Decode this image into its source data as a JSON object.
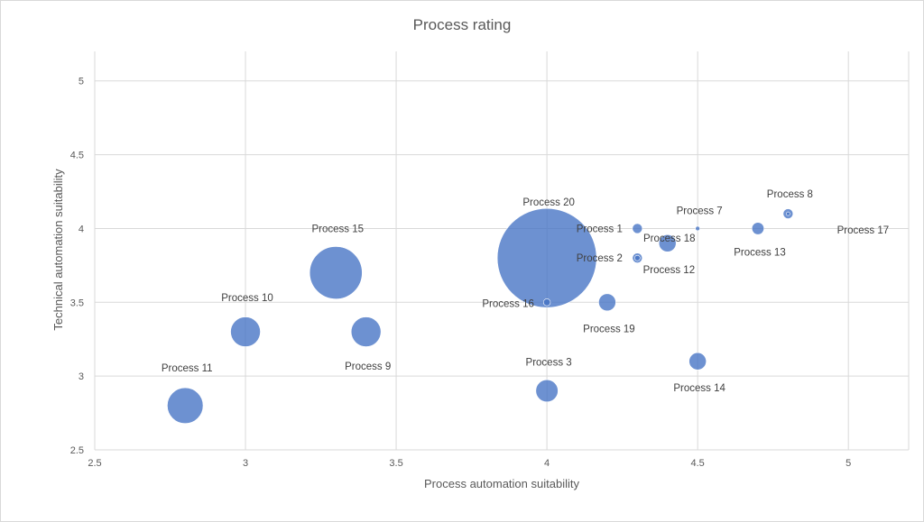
{
  "chart_data": {
    "type": "bubble",
    "title": "Process rating",
    "xlabel": "Process automation suitability",
    "ylabel": "Technical  automation suitability",
    "xlim": [
      2.5,
      5.2
    ],
    "ylim": [
      2.5,
      5.2
    ],
    "x_ticks": [
      "2.5",
      "3",
      "3.5",
      "4",
      "4.5",
      "5"
    ],
    "y_ticks": [
      "2.5",
      "3",
      "3.5",
      "4",
      "4.5",
      "5"
    ],
    "grid": true,
    "color": "#4472C4",
    "points": [
      {
        "label": "Process 1",
        "x": 4.3,
        "y": 4.0,
        "size": 1
      },
      {
        "label": "Process 2",
        "x": 4.3,
        "y": 3.8,
        "size": 1
      },
      {
        "label": "Process 3",
        "x": 4.0,
        "y": 2.9,
        "size": 5
      },
      {
        "label": "Process 7",
        "x": 4.5,
        "y": 4.0,
        "size": 0.2
      },
      {
        "label": "Process 8",
        "x": 4.8,
        "y": 4.1,
        "size": 1
      },
      {
        "label": "Process 9",
        "x": 3.4,
        "y": 3.3,
        "size": 9
      },
      {
        "label": "Process 10",
        "x": 3.0,
        "y": 3.3,
        "size": 9
      },
      {
        "label": "Process 11",
        "x": 2.8,
        "y": 2.8,
        "size": 13
      },
      {
        "label": "Process 12",
        "x": 4.3,
        "y": 3.8,
        "size": 0.3
      },
      {
        "label": "Process 13",
        "x": 4.7,
        "y": 4.0,
        "size": 1.5
      },
      {
        "label": "Process 14",
        "x": 4.5,
        "y": 3.1,
        "size": 3
      },
      {
        "label": "Process 15",
        "x": 3.3,
        "y": 3.7,
        "size": 28
      },
      {
        "label": "Process 16",
        "x": 4.0,
        "y": 3.5,
        "size": 0.5
      },
      {
        "label": "Process 17",
        "x": 4.8,
        "y": 4.1,
        "size": 0.1
      },
      {
        "label": "Process 18",
        "x": 4.4,
        "y": 3.9,
        "size": 3
      },
      {
        "label": "Process 19",
        "x": 4.2,
        "y": 3.5,
        "size": 3
      },
      {
        "label": "Process 20",
        "x": 4.0,
        "y": 3.8,
        "size": 100
      }
    ]
  }
}
